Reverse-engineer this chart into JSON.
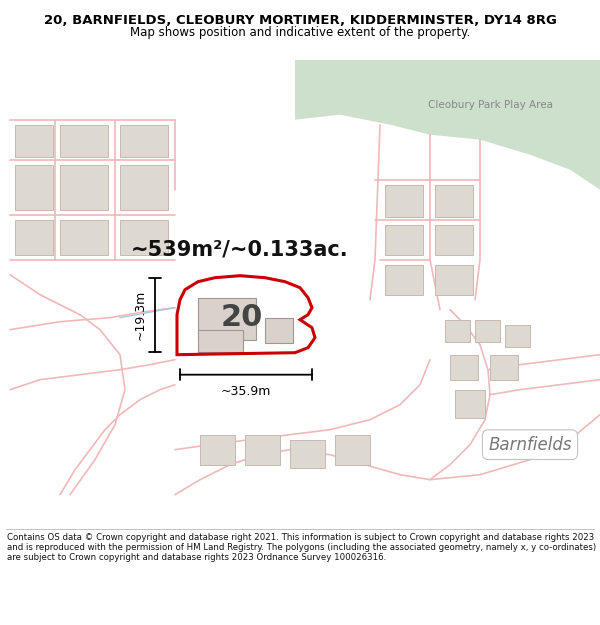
{
  "title": "20, BARNFIELDS, CLEOBURY MORTIMER, KIDDERMINSTER, DY14 8RG",
  "subtitle": "Map shows position and indicative extent of the property.",
  "footer": "Contains OS data © Crown copyright and database right 2021. This information is subject to Crown copyright and database rights 2023 and is reproduced with the permission of HM Land Registry. The polygons (including the associated geometry, namely x, y co-ordinates) are subject to Crown copyright and database rights 2023 Ordnance Survey 100026316.",
  "area_label": "~539m²/~0.133ac.",
  "number_label": "20",
  "width_label": "~35.9m",
  "height_label": "~19.3m",
  "map_bg": "#ffffff",
  "green_area_color": "#cde0cc",
  "road_color": "#f0b8b8",
  "road_edge_color": "#e89090",
  "building_color": "#ddd8d0",
  "building_edge": "#c8b8b0",
  "highlight_color": "#cc0000",
  "barnfields_label": "Barnfields",
  "play_area_label": "Cleobury Park Play Area",
  "title_fontsize": 9.5,
  "subtitle_fontsize": 8.5,
  "footer_fontsize": 6.2,
  "area_fontsize": 15,
  "number_fontsize": 22,
  "dim_fontsize": 9,
  "barnfields_fontsize": 12,
  "playarea_fontsize": 7.5
}
